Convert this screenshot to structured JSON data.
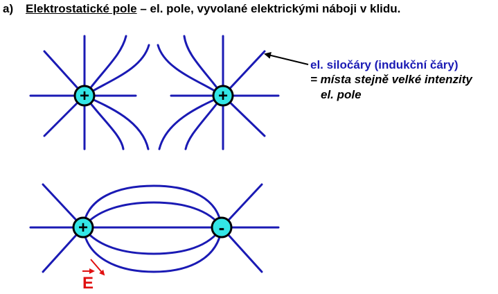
{
  "heading": {
    "label": "a)",
    "term": "Elektrostatické pole",
    "rest": " – el. pole, vyvolané elektrickými náboji v klidu."
  },
  "annotation": {
    "line1": "el. siločáry (indukční čáry)",
    "line2": "= místa stejně velké intenzity",
    "line3": "el. pole"
  },
  "charges": {
    "top_left": "+",
    "top_right": "+",
    "bottom_left": "+",
    "bottom_right": "-"
  },
  "vector_label": "E",
  "colors": {
    "field_line": "#1a1ab4",
    "charge_fill": "#33e6e6",
    "charge_stroke": "#000000",
    "vector": "#e01010",
    "annotation_blue": "#1a1ab4"
  }
}
